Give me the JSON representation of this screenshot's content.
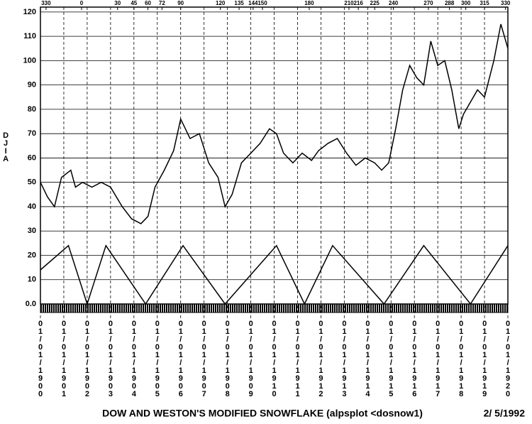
{
  "chart_data": {
    "type": "line",
    "title": "DOW AND WESTON'S  MODIFIED SNOWFLAKE  (alpsplot <dosnow1)",
    "date": "2/ 5/1992",
    "ylabel": "DJIA",
    "xlim": [
      1900,
      1920
    ],
    "ylim": [
      0,
      122
    ],
    "yticks": [
      {
        "value": 0,
        "label": "0.0"
      },
      10,
      20,
      30,
      40,
      50,
      60,
      70,
      80,
      90,
      100,
      110,
      120
    ],
    "xticks": [
      {
        "value": 1900,
        "label": "01/01/1900"
      },
      {
        "value": 1901,
        "label": "01/01/1901"
      },
      {
        "value": 1902,
        "label": "01/01/1902"
      },
      {
        "value": 1903,
        "label": "01/01/1903"
      },
      {
        "value": 1904,
        "label": "01/01/1904"
      },
      {
        "value": 1905,
        "label": "01/01/1905"
      },
      {
        "value": 1906,
        "label": "01/01/1906"
      },
      {
        "value": 1907,
        "label": "01/01/1907"
      },
      {
        "value": 1908,
        "label": "01/01/1908"
      },
      {
        "value": 1909,
        "label": "01/01/1909"
      },
      {
        "value": 1910,
        "label": "01/01/1910"
      },
      {
        "value": 1911,
        "label": "01/01/1911"
      },
      {
        "value": 1912,
        "label": "01/01/1912"
      },
      {
        "value": 1913,
        "label": "01/01/1913"
      },
      {
        "value": 1914,
        "label": "01/01/1914"
      },
      {
        "value": 1915,
        "label": "01/01/1915"
      },
      {
        "value": 1916,
        "label": "01/01/1916"
      },
      {
        "value": 1917,
        "label": "01/01/1917"
      },
      {
        "value": 1918,
        "label": "01/01/1918"
      },
      {
        "value": 1919,
        "label": "01/01/1919"
      },
      {
        "value": 1920,
        "label": "01/01/1920"
      }
    ],
    "top_ticks": [
      {
        "value": 1900.24,
        "label": "330"
      },
      {
        "value": 1901.76,
        "label": "0"
      },
      {
        "value": 1903.3,
        "label": "30"
      },
      {
        "value": 1904.0,
        "label": "45"
      },
      {
        "value": 1904.6,
        "label": "60"
      },
      {
        "value": 1905.2,
        "label": "72"
      },
      {
        "value": 1906.0,
        "label": "90"
      },
      {
        "value": 1907.7,
        "label": "120"
      },
      {
        "value": 1908.5,
        "label": "135"
      },
      {
        "value": 1909.1,
        "label": "144"
      },
      {
        "value": 1909.5,
        "label": "150"
      },
      {
        "value": 1911.5,
        "label": "180"
      },
      {
        "value": 1913.2,
        "label": "210"
      },
      {
        "value": 1913.6,
        "label": "216"
      },
      {
        "value": 1914.3,
        "label": "225"
      },
      {
        "value": 1915.1,
        "label": "240"
      },
      {
        "value": 1916.6,
        "label": "270"
      },
      {
        "value": 1917.5,
        "label": "288"
      },
      {
        "value": 1918.2,
        "label": "300"
      },
      {
        "value": 1919.0,
        "label": "315"
      },
      {
        "value": 1919.9,
        "label": "330"
      }
    ],
    "grid": true,
    "series": [
      {
        "color": "#000000",
        "x": [
          1900.0,
          1900.3,
          1900.6,
          1900.9,
          1901.3,
          1901.5,
          1901.8,
          1902.2,
          1902.6,
          1903.0,
          1903.5,
          1903.9,
          1904.3,
          1904.6,
          1904.9,
          1905.3,
          1905.7,
          1906.0,
          1906.4,
          1906.8,
          1907.2,
          1907.6,
          1907.9,
          1908.2,
          1908.6,
          1909.0,
          1909.4,
          1909.8,
          1910.1,
          1910.4,
          1910.8,
          1911.2,
          1911.6,
          1911.9,
          1912.3,
          1912.7,
          1913.1,
          1913.5,
          1913.9,
          1914.3,
          1914.6,
          1914.9,
          1915.2,
          1915.5,
          1915.8,
          1916.1,
          1916.4,
          1916.7,
          1917.0,
          1917.3,
          1917.6,
          1917.9,
          1918.1,
          1918.4,
          1918.7,
          1919.0,
          1919.4,
          1919.7,
          1920.0
        ],
        "values": [
          50,
          44,
          40,
          52,
          55,
          48,
          50,
          48,
          50,
          48,
          40,
          35,
          33,
          36,
          48,
          55,
          63,
          76,
          68,
          70,
          58,
          52,
          40,
          45,
          58,
          62,
          66,
          72,
          70,
          62,
          58,
          62,
          59,
          63,
          66,
          68,
          62,
          57,
          60,
          58,
          55,
          58,
          72,
          88,
          98,
          93,
          90,
          108,
          98,
          100,
          88,
          72,
          78,
          83,
          88,
          85,
          100,
          115,
          105
        ]
      },
      {
        "color": "#000000",
        "x": [
          1900,
          1901.2,
          1902.0,
          1902.8,
          1904.5,
          1906.1,
          1907.9,
          1910.1,
          1911.3,
          1912.5,
          1914.7,
          1916.4,
          1918.4,
          1920
        ],
        "values": [
          14,
          24,
          0,
          24,
          0,
          24,
          0,
          24,
          0,
          24,
          0,
          24,
          0,
          24
        ]
      }
    ]
  }
}
